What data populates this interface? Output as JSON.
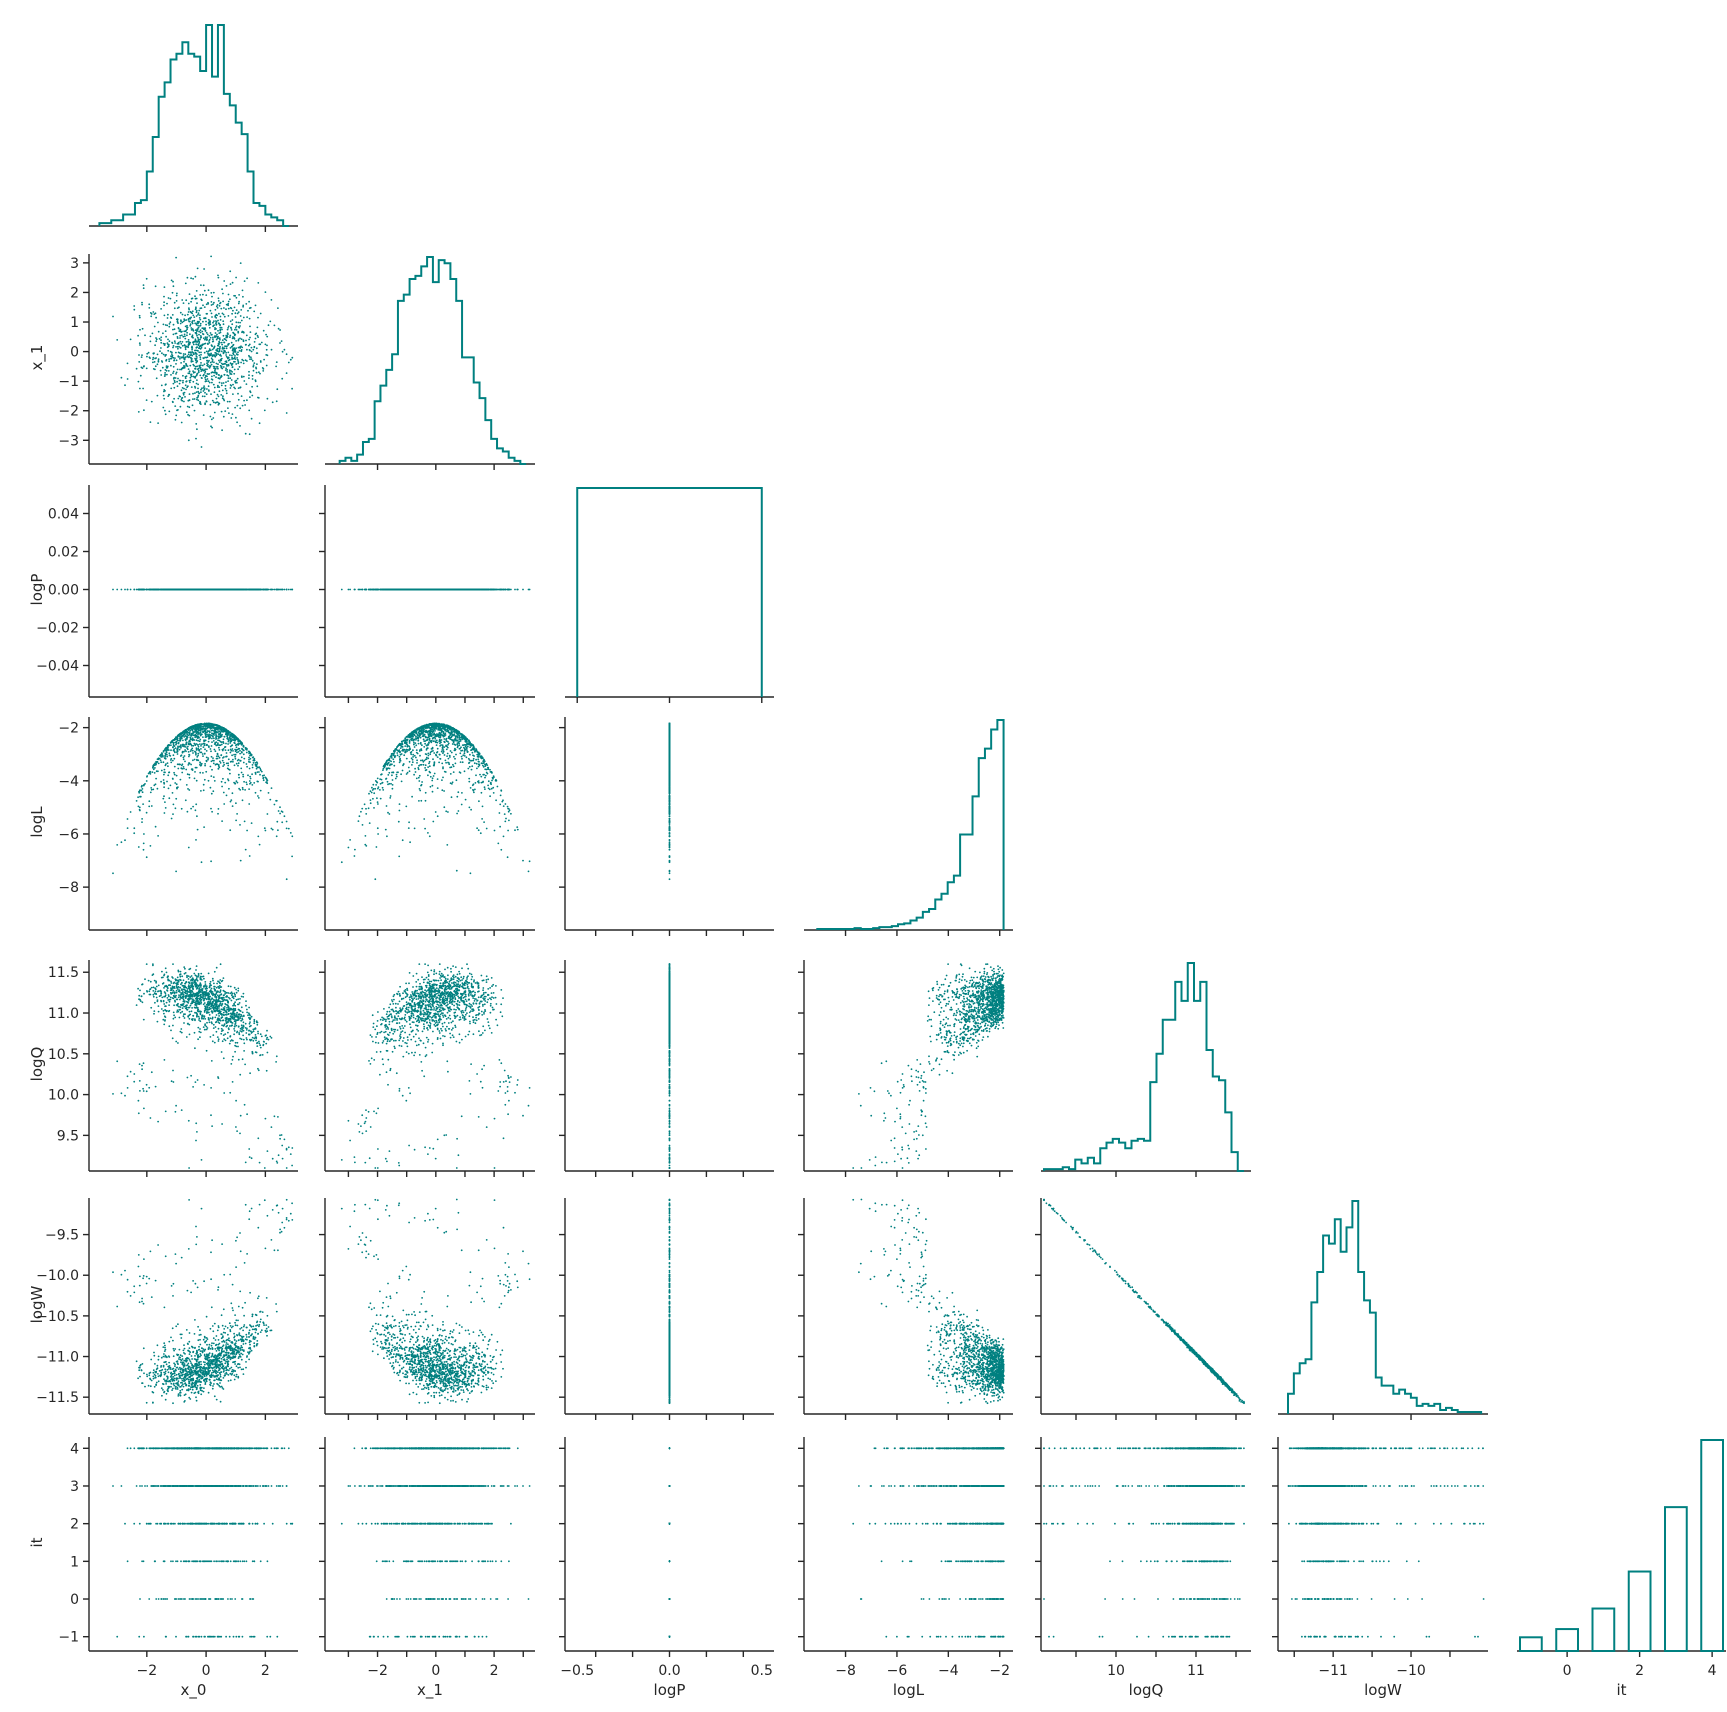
{
  "chart_data": {
    "type": "pairplot",
    "layout": "corner",
    "color": "#008080",
    "variables": [
      "x_0",
      "x_1",
      "logP",
      "logL",
      "logQ",
      "logW",
      "it"
    ],
    "axis_labels": [
      "x_0",
      "x_1",
      "logP",
      "logL",
      "logQ",
      "logW",
      "it"
    ],
    "ranges": [
      [
        -3.85,
        3.0
      ],
      [
        -3.7,
        3.3
      ],
      [
        -0.055,
        0.055
      ],
      [
        -9.5,
        -1.6
      ],
      [
        9.1,
        11.65
      ],
      [
        -11.67,
        -9.05
      ],
      [
        -1.3,
        4.3
      ]
    ],
    "ticks": [
      [
        -2,
        0,
        2
      ],
      [
        -3,
        -2,
        -1,
        0,
        1,
        2,
        3
      ],
      [
        -0.04,
        -0.02,
        0.0,
        0.02,
        0.04
      ],
      [
        -8,
        -6,
        -4,
        -2
      ],
      [
        9.5,
        10.0,
        10.5,
        11.0,
        11.5
      ],
      [
        -11.5,
        -11.0,
        -10.5,
        -10.0,
        -9.5
      ],
      [
        -1,
        0,
        1,
        2,
        3,
        4
      ]
    ],
    "tick_labels": [
      [
        "−2",
        "0",
        "2"
      ],
      [
        "−3",
        "−2",
        "−1",
        "0",
        "1",
        "2",
        "3"
      ],
      [
        "−0.04",
        "−0.02",
        "0.00",
        "0.02",
        "0.04"
      ],
      [
        "−8",
        "−6",
        "−4",
        "−2"
      ],
      [
        "9.5",
        "10.0",
        "10.5",
        "11.0",
        "11.5"
      ],
      [
        "−11.5",
        "−11.0",
        "−10.5",
        "−10.0",
        "−9.5"
      ],
      [
        "−1",
        "0",
        "1",
        "2",
        "3",
        "4"
      ]
    ],
    "diag_x_ticks": [
      [
        -2,
        0,
        2
      ],
      [
        -2,
        0,
        2
      ],
      [
        -0.5,
        0.0,
        0.5
      ],
      [
        -8,
        -6,
        -4,
        -2
      ],
      [
        10,
        11
      ],
      [
        -11,
        -10
      ],
      [
        0,
        2,
        4
      ]
    ],
    "diag_x_tick_labels": [
      [
        "−2",
        "0",
        "2"
      ],
      [
        "−2",
        "0",
        "2"
      ],
      [
        "−0.5",
        "0.0",
        "0.5"
      ],
      [
        "−8",
        "−6",
        "−4",
        "−2"
      ],
      [
        "10",
        "11"
      ],
      [
        "−11",
        "−10"
      ],
      [
        "0",
        "2",
        "4"
      ]
    ],
    "diag_x_ranges": [
      [
        -3.85,
        3.0
      ],
      [
        -3.7,
        3.3
      ],
      [
        -0.55,
        0.55
      ],
      [
        -9.5,
        -1.6
      ],
      [
        9.1,
        11.65
      ],
      [
        -11.67,
        -9.05
      ],
      [
        -1.3,
        4.3
      ]
    ],
    "histograms": {
      "x_0": {
        "edges": [
          -3.6,
          2.8
        ],
        "heights": [
          1,
          1,
          2,
          2,
          4,
          4,
          8,
          9,
          19,
          31,
          45,
          50,
          58,
          60,
          64,
          60,
          59,
          54,
          70,
          52,
          70,
          46,
          42,
          36,
          32,
          19,
          8,
          7,
          4,
          3,
          2,
          0
        ]
      },
      "x_1": {
        "edges": [
          -3.3,
          3.1
        ],
        "heights": [
          1,
          2,
          1,
          3,
          7,
          8,
          20,
          25,
          30,
          35,
          52,
          54,
          59,
          60,
          63,
          66,
          58,
          65,
          64,
          59,
          52,
          34,
          34,
          26,
          21,
          14,
          8,
          5,
          4,
          2,
          1,
          0
        ]
      },
      "logP": {
        "edges": [
          -0.5,
          0.5
        ],
        "heights": [
          1
        ]
      },
      "logL": {
        "edges": [
          -9.1,
          -1.85
        ],
        "heights": [
          1,
          1,
          1,
          1,
          1,
          1,
          2,
          1,
          1,
          2,
          3,
          3,
          4,
          6,
          7,
          10,
          13,
          19,
          22,
          32,
          38,
          50,
          57,
          100,
          100,
          140,
          180,
          190,
          210,
          220
        ]
      },
      "logQ": {
        "edges": [
          9.1,
          11.6
        ],
        "heights": [
          1,
          1,
          1,
          2,
          1,
          6,
          4,
          7,
          4,
          12,
          15,
          17,
          15,
          12,
          16,
          17,
          16,
          47,
          62,
          80,
          80,
          100,
          90,
          110,
          90,
          100,
          64,
          50,
          48,
          31,
          10,
          0
        ]
      },
      "logW": {
        "edges": [
          -11.58,
          -9.1
        ],
        "heights": [
          10,
          20,
          25,
          27,
          55,
          70,
          88,
          84,
          96,
          80,
          92,
          105,
          70,
          56,
          50,
          18,
          14,
          14,
          10,
          12,
          10,
          8,
          4,
          5,
          4,
          5,
          2,
          3,
          2,
          1,
          1,
          1,
          1
        ]
      },
      "it": {
        "categories": [
          -1,
          0,
          1,
          2,
          3,
          4
        ],
        "heights": [
          1,
          1.6,
          3.1,
          5.8,
          10.5,
          15.4
        ]
      }
    },
    "scatter": {
      "x_1|x_0": "roughly isotropic Gaussian cloud, std 1",
      "logP|*": "constant 0",
      "logL|x_0": "logL = -(x0^2 + x1^2)/2 - 1.84",
      "logL|x_1": "logL = -(x0^2 + x1^2)/2 - 1.84",
      "logQ|*": "log volume weighting, 9.1 - 11.6",
      "logW|logQ": "logW = -logQ + ~0.03 (linear, slope -1)",
      "it|*": "iteration index, integer -1 .. 4"
    },
    "title": ""
  }
}
